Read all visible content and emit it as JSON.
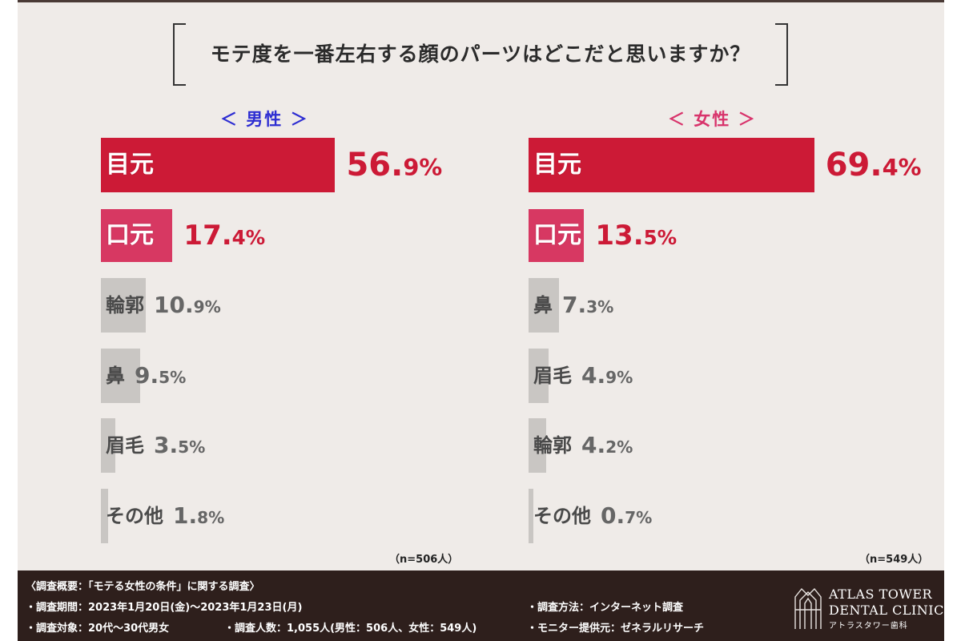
{
  "title": "モテ度を一番左右する顔のパーツはどこだと思いますか？",
  "colors": {
    "top": "#cc1a36",
    "second": "#d73862",
    "rest": "#c9c6c3",
    "male_header": "#2d2dd2",
    "female_header": "#d8336b",
    "value_gray": "#666666"
  },
  "chart_data": [
    {
      "type": "bar",
      "title": "＜ 男性 ＞",
      "categories": [
        "目元",
        "口元",
        "輪郭",
        "鼻",
        "眉毛",
        "その他"
      ],
      "values": [
        56.9,
        17.4,
        10.9,
        9.5,
        3.5,
        1.8
      ],
      "value_labels": [
        {
          "int": "56.",
          "dec": "9%"
        },
        {
          "int": "17.",
          "dec": "4%"
        },
        {
          "int": "10.",
          "dec": "9%"
        },
        {
          "int": "9.",
          "dec": "5%"
        },
        {
          "int": "3.",
          "dec": "5%"
        },
        {
          "int": "1.",
          "dec": "8%"
        }
      ],
      "n_label": "（n=506人）"
    },
    {
      "type": "bar",
      "title": "＜ 女性 ＞",
      "categories": [
        "目元",
        "口元",
        "鼻",
        "眉毛",
        "輪郭",
        "その他"
      ],
      "values": [
        69.4,
        13.5,
        7.3,
        4.9,
        4.2,
        0.7
      ],
      "value_labels": [
        {
          "int": "69.",
          "dec": "4%"
        },
        {
          "int": "13.",
          "dec": "5%"
        },
        {
          "int": "7.",
          "dec": "3%"
        },
        {
          "int": "4.",
          "dec": "9%"
        },
        {
          "int": "4.",
          "dec": "2%"
        },
        {
          "int": "0.",
          "dec": "7%"
        }
      ],
      "n_label": "（n=549人）"
    }
  ],
  "footer": {
    "line1": "〈調査概要：「モテる女性の条件」に関する調査〉",
    "line2": "・調査期間：2023年1月20日(金)～2023年1月23日(月)",
    "line3a": "・調査対象：20代～30代男女",
    "line3b": "・調査人数：1,055人(男性：506人、女性：549人)",
    "line2r": "・調査方法：インターネット調査",
    "line3r": "・モニター提供元：ゼネラルリサーチ",
    "logo_line1": "ATLAS TOWER",
    "logo_line2": "DENTAL CLINIC",
    "logo_line3": "アトラスタワー歯科"
  }
}
